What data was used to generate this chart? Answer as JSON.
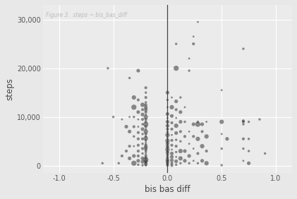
{
  "title": "Figure 3.  steps ~ bis_bas_diff",
  "xlabel": "bis bas diff",
  "ylabel": "steps",
  "background_color": "#E8E8E8",
  "plot_bg_color": "#EBEBEB",
  "grid_color": "#FFFFFF",
  "point_color": "#333333",
  "vline_x": 0.0,
  "vline_color": "#444444",
  "xlim": [
    -1.15,
    1.15
  ],
  "ylim": [
    -1500,
    33000
  ],
  "xticks": [
    -1.0,
    -0.5,
    0.0,
    0.5,
    1.0
  ],
  "yticks": [
    0,
    10000,
    20000,
    30000
  ],
  "points": [
    [
      -0.2,
      50
    ],
    [
      -0.2,
      300
    ],
    [
      -0.2,
      600
    ],
    [
      -0.2,
      900
    ],
    [
      -0.2,
      1200
    ],
    [
      -0.2,
      1600
    ],
    [
      -0.2,
      2000
    ],
    [
      -0.2,
      2400
    ],
    [
      -0.2,
      2800
    ],
    [
      -0.2,
      3200
    ],
    [
      -0.2,
      3600
    ],
    [
      -0.2,
      4000
    ],
    [
      -0.2,
      4400
    ],
    [
      -0.2,
      4800
    ],
    [
      -0.2,
      5200
    ],
    [
      -0.2,
      5600
    ],
    [
      -0.2,
      6000
    ],
    [
      -0.2,
      6500
    ],
    [
      -0.2,
      7000
    ],
    [
      -0.2,
      7500
    ],
    [
      -0.2,
      8000
    ],
    [
      -0.2,
      8500
    ],
    [
      -0.2,
      9000
    ],
    [
      -0.2,
      9500
    ],
    [
      -0.2,
      10000
    ],
    [
      -0.2,
      10500
    ],
    [
      -0.2,
      11000
    ],
    [
      -0.2,
      11500
    ],
    [
      -0.2,
      12000
    ],
    [
      -0.2,
      12500
    ],
    [
      -0.2,
      13000
    ],
    [
      -0.2,
      14000
    ],
    [
      -0.2,
      15000
    ],
    [
      -0.2,
      16000
    ],
    [
      -0.23,
      100
    ],
    [
      -0.23,
      800
    ],
    [
      -0.23,
      1500
    ],
    [
      -0.23,
      2500
    ],
    [
      -0.23,
      3500
    ],
    [
      -0.23,
      4500
    ],
    [
      -0.23,
      5500
    ],
    [
      -0.23,
      6500
    ],
    [
      -0.23,
      7500
    ],
    [
      -0.23,
      8500
    ],
    [
      -0.23,
      9500
    ],
    [
      -0.23,
      10500
    ],
    [
      -0.23,
      11500
    ],
    [
      -0.23,
      12500
    ],
    [
      -0.27,
      200
    ],
    [
      -0.27,
      1000
    ],
    [
      -0.27,
      2000
    ],
    [
      -0.27,
      3000
    ],
    [
      -0.27,
      4200
    ],
    [
      -0.27,
      5500
    ],
    [
      -0.27,
      6800
    ],
    [
      -0.27,
      8000
    ],
    [
      -0.27,
      9500
    ],
    [
      -0.27,
      11000
    ],
    [
      -0.27,
      13500
    ],
    [
      -0.27,
      19500
    ],
    [
      -0.31,
      500
    ],
    [
      -0.31,
      2000
    ],
    [
      -0.31,
      4000
    ],
    [
      -0.31,
      6000
    ],
    [
      -0.31,
      8000
    ],
    [
      -0.31,
      10000
    ],
    [
      -0.31,
      12000
    ],
    [
      -0.31,
      14000
    ],
    [
      -0.35,
      1500
    ],
    [
      -0.35,
      4000
    ],
    [
      -0.35,
      7000
    ],
    [
      -0.35,
      10000
    ],
    [
      -0.35,
      18000
    ],
    [
      -0.38,
      3000
    ],
    [
      -0.38,
      8000
    ],
    [
      -0.42,
      2000
    ],
    [
      -0.42,
      9500
    ],
    [
      -0.45,
      500
    ],
    [
      -0.5,
      10000
    ],
    [
      -0.55,
      20000
    ],
    [
      -0.6,
      500
    ],
    [
      0.0,
      100
    ],
    [
      0.0,
      400
    ],
    [
      0.0,
      800
    ],
    [
      0.0,
      1200
    ],
    [
      0.0,
      1700
    ],
    [
      0.0,
      2200
    ],
    [
      0.0,
      2700
    ],
    [
      0.0,
      3300
    ],
    [
      0.0,
      3900
    ],
    [
      0.0,
      4500
    ],
    [
      0.0,
      5100
    ],
    [
      0.0,
      5700
    ],
    [
      0.0,
      6300
    ],
    [
      0.0,
      6900
    ],
    [
      0.0,
      7500
    ],
    [
      0.0,
      8200
    ],
    [
      0.0,
      9000
    ],
    [
      0.0,
      9800
    ],
    [
      0.0,
      10600
    ],
    [
      0.0,
      12000
    ],
    [
      0.0,
      13500
    ],
    [
      0.0,
      15000
    ],
    [
      0.04,
      50
    ],
    [
      0.04,
      500
    ],
    [
      0.04,
      1100
    ],
    [
      0.04,
      1800
    ],
    [
      0.04,
      2500
    ],
    [
      0.04,
      3300
    ],
    [
      0.04,
      4200
    ],
    [
      0.04,
      5200
    ],
    [
      0.04,
      6300
    ],
    [
      0.04,
      7500
    ],
    [
      0.04,
      8800
    ],
    [
      0.04,
      10200
    ],
    [
      0.04,
      12000
    ],
    [
      0.04,
      14000
    ],
    [
      0.08,
      200
    ],
    [
      0.08,
      900
    ],
    [
      0.08,
      1800
    ],
    [
      0.08,
      2800
    ],
    [
      0.08,
      4000
    ],
    [
      0.08,
      5300
    ],
    [
      0.08,
      6700
    ],
    [
      0.08,
      8200
    ],
    [
      0.08,
      9800
    ],
    [
      0.08,
      11500
    ],
    [
      0.08,
      13200
    ],
    [
      0.08,
      20000
    ],
    [
      0.08,
      25000
    ],
    [
      0.12,
      500
    ],
    [
      0.12,
      1500
    ],
    [
      0.12,
      3000
    ],
    [
      0.12,
      5000
    ],
    [
      0.12,
      7000
    ],
    [
      0.12,
      9000
    ],
    [
      0.12,
      11000
    ],
    [
      0.12,
      14000
    ],
    [
      0.16,
      1000
    ],
    [
      0.16,
      3000
    ],
    [
      0.16,
      6000
    ],
    [
      0.16,
      9000
    ],
    [
      0.16,
      12000
    ],
    [
      0.2,
      500
    ],
    [
      0.2,
      2000
    ],
    [
      0.2,
      4500
    ],
    [
      0.2,
      7000
    ],
    [
      0.2,
      19500
    ],
    [
      0.2,
      22000
    ],
    [
      0.24,
      1000
    ],
    [
      0.24,
      3500
    ],
    [
      0.24,
      6000
    ],
    [
      0.24,
      8500
    ],
    [
      0.24,
      25000
    ],
    [
      0.24,
      26500
    ],
    [
      0.28,
      500
    ],
    [
      0.28,
      2500
    ],
    [
      0.28,
      5500
    ],
    [
      0.28,
      8500
    ],
    [
      0.28,
      9000
    ],
    [
      0.28,
      29500
    ],
    [
      0.32,
      1000
    ],
    [
      0.32,
      4000
    ],
    [
      0.32,
      7000
    ],
    [
      0.32,
      8500
    ],
    [
      0.36,
      500
    ],
    [
      0.36,
      3000
    ],
    [
      0.36,
      6000
    ],
    [
      0.36,
      9000
    ],
    [
      0.5,
      100
    ],
    [
      0.5,
      3500
    ],
    [
      0.5,
      6500
    ],
    [
      0.5,
      9000
    ],
    [
      0.5,
      15500
    ],
    [
      0.55,
      5500
    ],
    [
      0.7,
      1000
    ],
    [
      0.7,
      3500
    ],
    [
      0.7,
      5500
    ],
    [
      0.7,
      8500
    ],
    [
      0.7,
      9000
    ],
    [
      0.7,
      9200
    ],
    [
      0.7,
      24000
    ],
    [
      0.75,
      500
    ],
    [
      0.75,
      3000
    ],
    [
      0.75,
      5500
    ],
    [
      0.75,
      9000
    ],
    [
      0.85,
      9500
    ],
    [
      0.9,
      2500
    ]
  ]
}
